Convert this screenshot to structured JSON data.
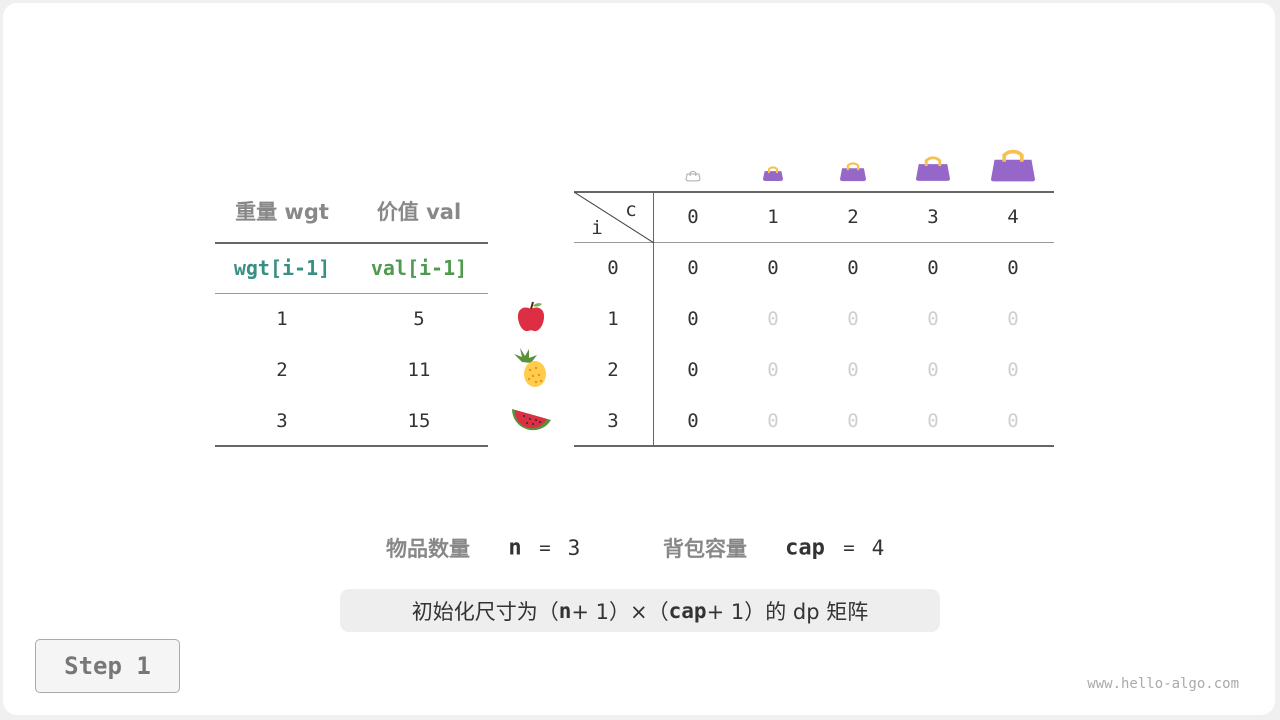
{
  "items_table": {
    "headers": [
      "重量 wgt",
      "价值 val"
    ],
    "subheaders": [
      "wgt[i-1]",
      "val[i-1]"
    ],
    "rows": [
      {
        "wgt": "1",
        "val": "5",
        "icon": "apple-icon"
      },
      {
        "wgt": "2",
        "val": "11",
        "icon": "pineapple-icon"
      },
      {
        "wgt": "3",
        "val": "15",
        "icon": "watermelon-icon"
      }
    ],
    "colors": {
      "wgt": "#3a8f84",
      "val": "#4f9a4f"
    }
  },
  "dp_table": {
    "corner_row_label": "i",
    "corner_col_label": "c",
    "col_labels": [
      "0",
      "1",
      "2",
      "3",
      "4"
    ],
    "row_labels": [
      "0",
      "1",
      "2",
      "3"
    ],
    "cells": [
      [
        "0",
        "0",
        "0",
        "0",
        "0"
      ],
      [
        "0",
        "0",
        "0",
        "0",
        "0"
      ],
      [
        "0",
        "0",
        "0",
        "0",
        "0"
      ],
      [
        "0",
        "0",
        "0",
        "0",
        "0"
      ]
    ],
    "bag_icons": [
      "bag-icon-empty",
      "bag-icon",
      "bag-icon",
      "bag-icon",
      "bag-icon"
    ],
    "bag_color": "#9467c8"
  },
  "params": {
    "n_label": "物品数量",
    "n_var": "n",
    "n_eq": "=",
    "n_value": "3",
    "cap_label": "背包容量",
    "cap_var": "cap",
    "cap_eq": "=",
    "cap_value": "4"
  },
  "summary": {
    "prefix": "初始化尺寸为（",
    "n": "n",
    "mid1": " + 1）×（",
    "cap": "cap",
    "suffix": " + 1）的 dp 矩阵"
  },
  "step_label": "Step 1",
  "watermark": "www.hello-algo.com"
}
